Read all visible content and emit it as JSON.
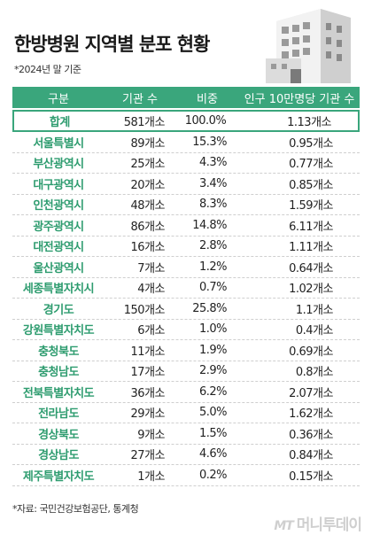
{
  "title": "한방병원 지역별 분포 현황",
  "subtitle": "*2024년 말 기준",
  "headers": [
    "구분",
    "기관 수",
    "비중",
    "인구 10만명당 기관 수"
  ],
  "total": {
    "region": "합계",
    "count": "581개소",
    "share": "100.0%",
    "per100k": "1.13개소"
  },
  "rows": [
    {
      "region": "서울특별시",
      "count": "89개소",
      "share": "15.3%",
      "per100k": "0.95개소"
    },
    {
      "region": "부산광역시",
      "count": "25개소",
      "share": "4.3%",
      "per100k": "0.77개소"
    },
    {
      "region": "대구광역시",
      "count": "20개소",
      "share": "3.4%",
      "per100k": "0.85개소"
    },
    {
      "region": "인천광역시",
      "count": "48개소",
      "share": "8.3%",
      "per100k": "1.59개소"
    },
    {
      "region": "광주광역시",
      "count": "86개소",
      "share": "14.8%",
      "per100k": "6.11개소"
    },
    {
      "region": "대전광역시",
      "count": "16개소",
      "share": "2.8%",
      "per100k": "1.11개소"
    },
    {
      "region": "울산광역시",
      "count": "7개소",
      "share": "1.2%",
      "per100k": "0.64개소"
    },
    {
      "region": "세종특별자치시",
      "count": "4개소",
      "share": "0.7%",
      "per100k": "1.02개소"
    },
    {
      "region": "경기도",
      "count": "150개소",
      "share": "25.8%",
      "per100k": "1.1개소"
    },
    {
      "region": "강원특별자치도",
      "count": "6개소",
      "share": "1.0%",
      "per100k": "0.4개소"
    },
    {
      "region": "충청북도",
      "count": "11개소",
      "share": "1.9%",
      "per100k": "0.69개소"
    },
    {
      "region": "충청남도",
      "count": "17개소",
      "share": "2.9%",
      "per100k": "0.8개소"
    },
    {
      "region": "전북특별자치도",
      "count": "36개소",
      "share": "6.2%",
      "per100k": "2.07개소"
    },
    {
      "region": "전라남도",
      "count": "29개소",
      "share": "5.0%",
      "per100k": "1.62개소"
    },
    {
      "region": "경상북도",
      "count": "9개소",
      "share": "1.5%",
      "per100k": "0.36개소"
    },
    {
      "region": "경상남도",
      "count": "27개소",
      "share": "4.6%",
      "per100k": "0.84개소"
    },
    {
      "region": "제주특별자치도",
      "count": "1개소",
      "share": "0.2%",
      "per100k": "0.15개소"
    }
  ],
  "source": "*자료: 국민건강보험공단, 통계청",
  "logo": {
    "mark": "MT",
    "name": "머니투데이"
  },
  "icons": [
    "hospital-building-icon"
  ],
  "colors": {
    "accent": "#3aa67c",
    "region_text": "#2e9c6f"
  }
}
